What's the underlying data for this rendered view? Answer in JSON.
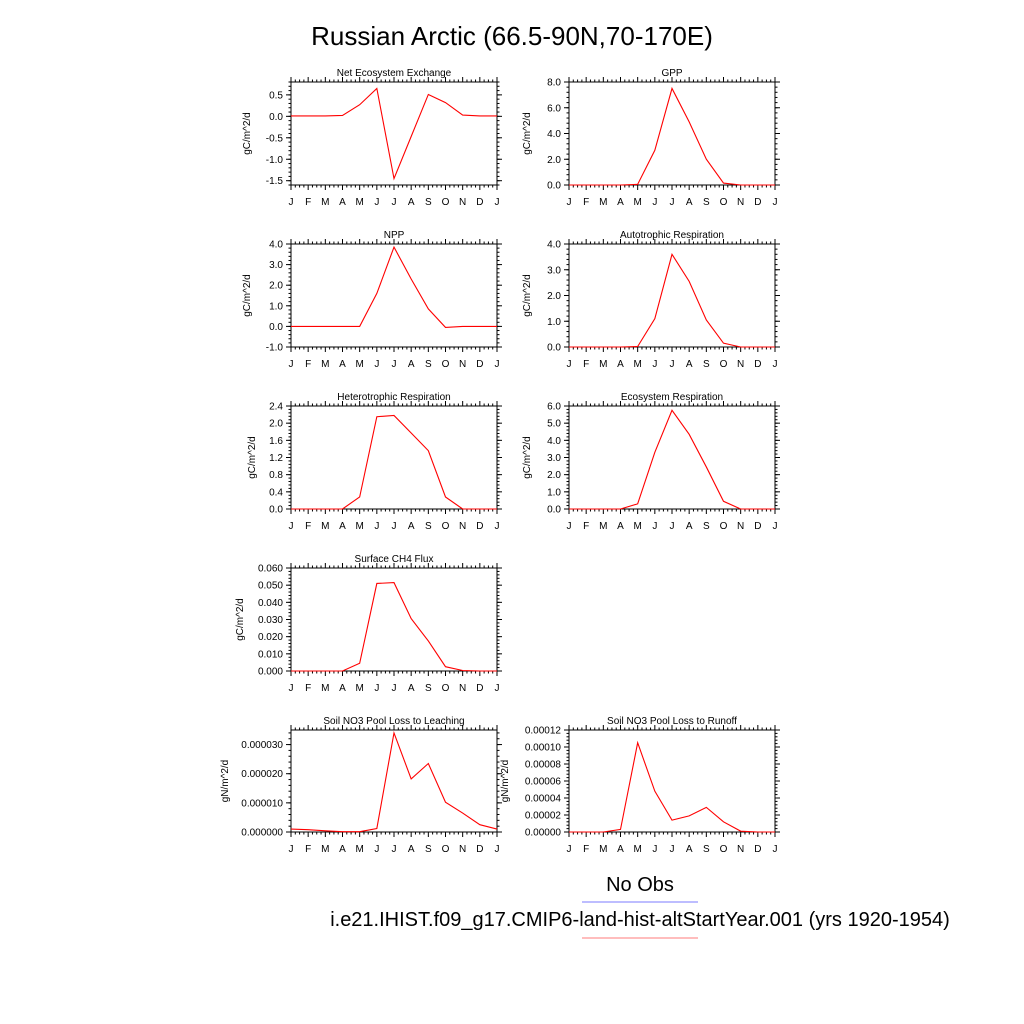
{
  "figure": {
    "title": "Russian Arctic (66.5-90N,70-170E)",
    "legend": [
      {
        "label": "No Obs",
        "color": "#7b7bff"
      },
      {
        "label": "i.e21.IHIST.f09_g17.CMIP6-land-hist-altStartYear.001 (yrs 1920-1954)",
        "color": "#ff7b7b"
      }
    ],
    "line_color": "#ff0000"
  },
  "chart_data": [
    {
      "type": "line",
      "title": "Net Ecosystem Exchange",
      "ylabel": "gC/m^2/d",
      "xlabel": "",
      "categories": [
        "J",
        "F",
        "M",
        "A",
        "M",
        "J",
        "J",
        "A",
        "S",
        "O",
        "N",
        "D",
        "J"
      ],
      "ylim": [
        -1.6,
        0.8
      ],
      "yticks": [
        0.5,
        0.0,
        -0.5,
        -1.0,
        -1.5
      ],
      "yticklabels": [
        "0.5",
        "0.0",
        "-0.5",
        "-1.0",
        "-1.5"
      ],
      "values": [
        0.01,
        0.01,
        0.01,
        0.02,
        0.27,
        0.65,
        -1.45,
        -0.47,
        0.51,
        0.32,
        0.03,
        0.01,
        0.01
      ]
    },
    {
      "type": "line",
      "title": "GPP",
      "ylabel": "gC/m^2/d",
      "xlabel": "",
      "categories": [
        "J",
        "F",
        "M",
        "A",
        "M",
        "J",
        "J",
        "A",
        "S",
        "O",
        "N",
        "D",
        "J"
      ],
      "ylim": [
        0,
        8
      ],
      "yticks": [
        8,
        6,
        4,
        2,
        0
      ],
      "yticklabels": [
        "8.0",
        "6.0",
        "4.0",
        "2.0",
        "0.0"
      ],
      "values": [
        0,
        0,
        0,
        0,
        0.05,
        2.7,
        7.5,
        4.9,
        2.0,
        0.15,
        0,
        0,
        0
      ]
    },
    {
      "type": "line",
      "title": "NPP",
      "ylabel": "gC/m^2/d",
      "xlabel": "",
      "categories": [
        "J",
        "F",
        "M",
        "A",
        "M",
        "J",
        "J",
        "A",
        "S",
        "O",
        "N",
        "D",
        "J"
      ],
      "ylim": [
        -1,
        4
      ],
      "yticks": [
        4,
        3,
        2,
        1,
        0,
        -1
      ],
      "yticklabels": [
        "4.0",
        "3.0",
        "2.0",
        "1.0",
        "0.0",
        "-1.0"
      ],
      "values": [
        0,
        0,
        0,
        0,
        0,
        1.6,
        3.85,
        2.3,
        0.85,
        -0.05,
        0,
        0,
        0
      ]
    },
    {
      "type": "line",
      "title": "Autotrophic Respiration",
      "ylabel": "gC/m^2/d",
      "xlabel": "",
      "categories": [
        "J",
        "F",
        "M",
        "A",
        "M",
        "J",
        "J",
        "A",
        "S",
        "O",
        "N",
        "D",
        "J"
      ],
      "ylim": [
        0,
        4
      ],
      "yticks": [
        4,
        3,
        2,
        1,
        0
      ],
      "yticklabels": [
        "4.0",
        "3.0",
        "2.0",
        "1.0",
        "0.0"
      ],
      "values": [
        0,
        0,
        0,
        0,
        0.02,
        1.1,
        3.6,
        2.55,
        1.05,
        0.15,
        0,
        0,
        0
      ]
    },
    {
      "type": "line",
      "title": "Heterotrophic Respiration",
      "ylabel": "gC/m^2/d",
      "xlabel": "",
      "categories": [
        "J",
        "F",
        "M",
        "A",
        "M",
        "J",
        "J",
        "A",
        "S",
        "O",
        "N",
        "D",
        "J"
      ],
      "ylim": [
        0,
        2.4
      ],
      "yticks": [
        2.4,
        2.0,
        1.6,
        1.2,
        0.8,
        0.4,
        0.0
      ],
      "yticklabels": [
        "2.4",
        "2.0",
        "1.6",
        "1.2",
        "0.8",
        "0.4",
        "0.0"
      ],
      "values": [
        0,
        0,
        0,
        0,
        0.28,
        2.15,
        2.18,
        1.77,
        1.36,
        0.28,
        0,
        0,
        0
      ]
    },
    {
      "type": "line",
      "title": "Ecosystem Respiration",
      "ylabel": "gC/m^2/d",
      "xlabel": "",
      "categories": [
        "J",
        "F",
        "M",
        "A",
        "M",
        "J",
        "J",
        "A",
        "S",
        "O",
        "N",
        "D",
        "J"
      ],
      "ylim": [
        0,
        6
      ],
      "yticks": [
        6,
        5,
        4,
        3,
        2,
        1,
        0
      ],
      "yticklabels": [
        "6.0",
        "5.0",
        "4.0",
        "3.0",
        "2.0",
        "1.0",
        "0.0"
      ],
      "values": [
        0,
        0,
        0,
        0,
        0.3,
        3.3,
        5.75,
        4.35,
        2.45,
        0.45,
        0,
        0,
        0
      ]
    },
    {
      "type": "line",
      "title": "Surface CH4 Flux",
      "ylabel": "gC/m^2/d",
      "xlabel": "",
      "categories": [
        "J",
        "F",
        "M",
        "A",
        "M",
        "J",
        "J",
        "A",
        "S",
        "O",
        "N",
        "D",
        "J"
      ],
      "ylim": [
        0,
        0.06
      ],
      "yticks": [
        0.06,
        0.05,
        0.04,
        0.03,
        0.02,
        0.01,
        0.0
      ],
      "yticklabels": [
        "0.060",
        "0.050",
        "0.040",
        "0.030",
        "0.020",
        "0.010",
        "0.000"
      ],
      "values": [
        0,
        0,
        0,
        0,
        0.0045,
        0.051,
        0.0515,
        0.0305,
        0.0175,
        0.0025,
        0.0003,
        0,
        0
      ]
    },
    {
      "type": "line",
      "title": "Soil NO3 Pool Loss to Leaching",
      "ylabel": "gN/m^2/d",
      "xlabel": "",
      "categories": [
        "J",
        "F",
        "M",
        "A",
        "M",
        "J",
        "J",
        "A",
        "S",
        "O",
        "N",
        "D",
        "J"
      ],
      "ylim": [
        0,
        3.5e-05
      ],
      "yticks": [
        3e-05,
        2e-05,
        1e-05,
        0.0
      ],
      "yticklabels": [
        "0.000030",
        "0.000020",
        "0.000010",
        "0.000000"
      ],
      "values": [
        1e-06,
        8e-07,
        4e-07,
        1e-07,
        1e-07,
        1.2e-06,
        3.4e-05,
        1.82e-05,
        2.35e-05,
        1.02e-05,
        6.5e-06,
        2.5e-06,
        1e-06
      ]
    },
    {
      "type": "line",
      "title": "Soil NO3 Pool Loss to Runoff",
      "ylabel": "gN/m^2/d",
      "xlabel": "",
      "categories": [
        "J",
        "F",
        "M",
        "A",
        "M",
        "J",
        "J",
        "A",
        "S",
        "O",
        "N",
        "D",
        "J"
      ],
      "ylim": [
        0,
        0.00012
      ],
      "yticks": [
        0.00012,
        0.0001,
        8e-05,
        6e-05,
        4e-05,
        2e-05,
        0.0
      ],
      "yticklabels": [
        "0.00012",
        "0.00010",
        "0.00008",
        "0.00006",
        "0.00004",
        "0.00002",
        "0.00000"
      ],
      "values": [
        0,
        0,
        0,
        3e-06,
        0.000105,
        4.8e-05,
        1.4e-05,
        1.9e-05,
        2.9e-05,
        1.2e-05,
        1e-06,
        0,
        0
      ]
    }
  ]
}
